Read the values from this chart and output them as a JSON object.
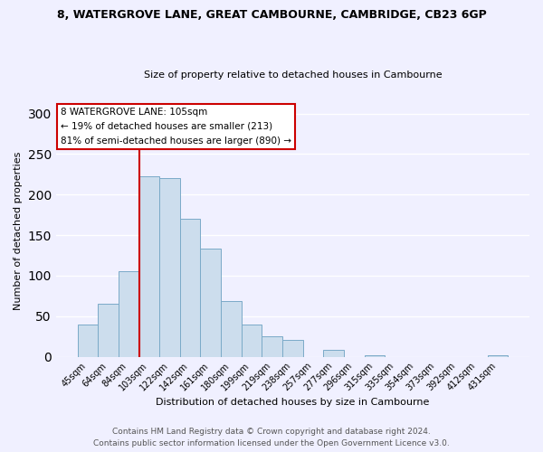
{
  "title": "8, WATERGROVE LANE, GREAT CAMBOURNE, CAMBRIDGE, CB23 6GP",
  "subtitle": "Size of property relative to detached houses in Cambourne",
  "xlabel": "Distribution of detached houses by size in Cambourne",
  "ylabel": "Number of detached properties",
  "bar_color": "#ccdded",
  "bar_edge_color": "#7aaac8",
  "categories": [
    "45sqm",
    "64sqm",
    "84sqm",
    "103sqm",
    "122sqm",
    "142sqm",
    "161sqm",
    "180sqm",
    "199sqm",
    "219sqm",
    "238sqm",
    "257sqm",
    "277sqm",
    "296sqm",
    "315sqm",
    "335sqm",
    "354sqm",
    "373sqm",
    "392sqm",
    "412sqm",
    "431sqm"
  ],
  "values": [
    40,
    65,
    105,
    222,
    220,
    170,
    133,
    69,
    40,
    25,
    21,
    0,
    8,
    0,
    2,
    0,
    0,
    0,
    0,
    0,
    2
  ],
  "ylim": [
    0,
    310
  ],
  "yticks": [
    0,
    50,
    100,
    150,
    200,
    250,
    300
  ],
  "annotation_line1": "8 WATERGROVE LANE: 105sqm",
  "annotation_line2": "← 19% of detached houses are smaller (213)",
  "annotation_line3": "81% of semi-detached houses are larger (890) →",
  "annotation_box_color": "white",
  "annotation_box_edge_color": "#cc0000",
  "property_bar_index": 3,
  "property_line_color": "#cc0000",
  "footer1": "Contains HM Land Registry data © Crown copyright and database right 2024.",
  "footer2": "Contains public sector information licensed under the Open Government Licence v3.0.",
  "background_color": "#f0f0ff",
  "grid_color": "white",
  "title_fontsize": 9,
  "subtitle_fontsize": 8,
  "axis_label_fontsize": 8,
  "tick_fontsize": 7,
  "footer_fontsize": 6.5
}
